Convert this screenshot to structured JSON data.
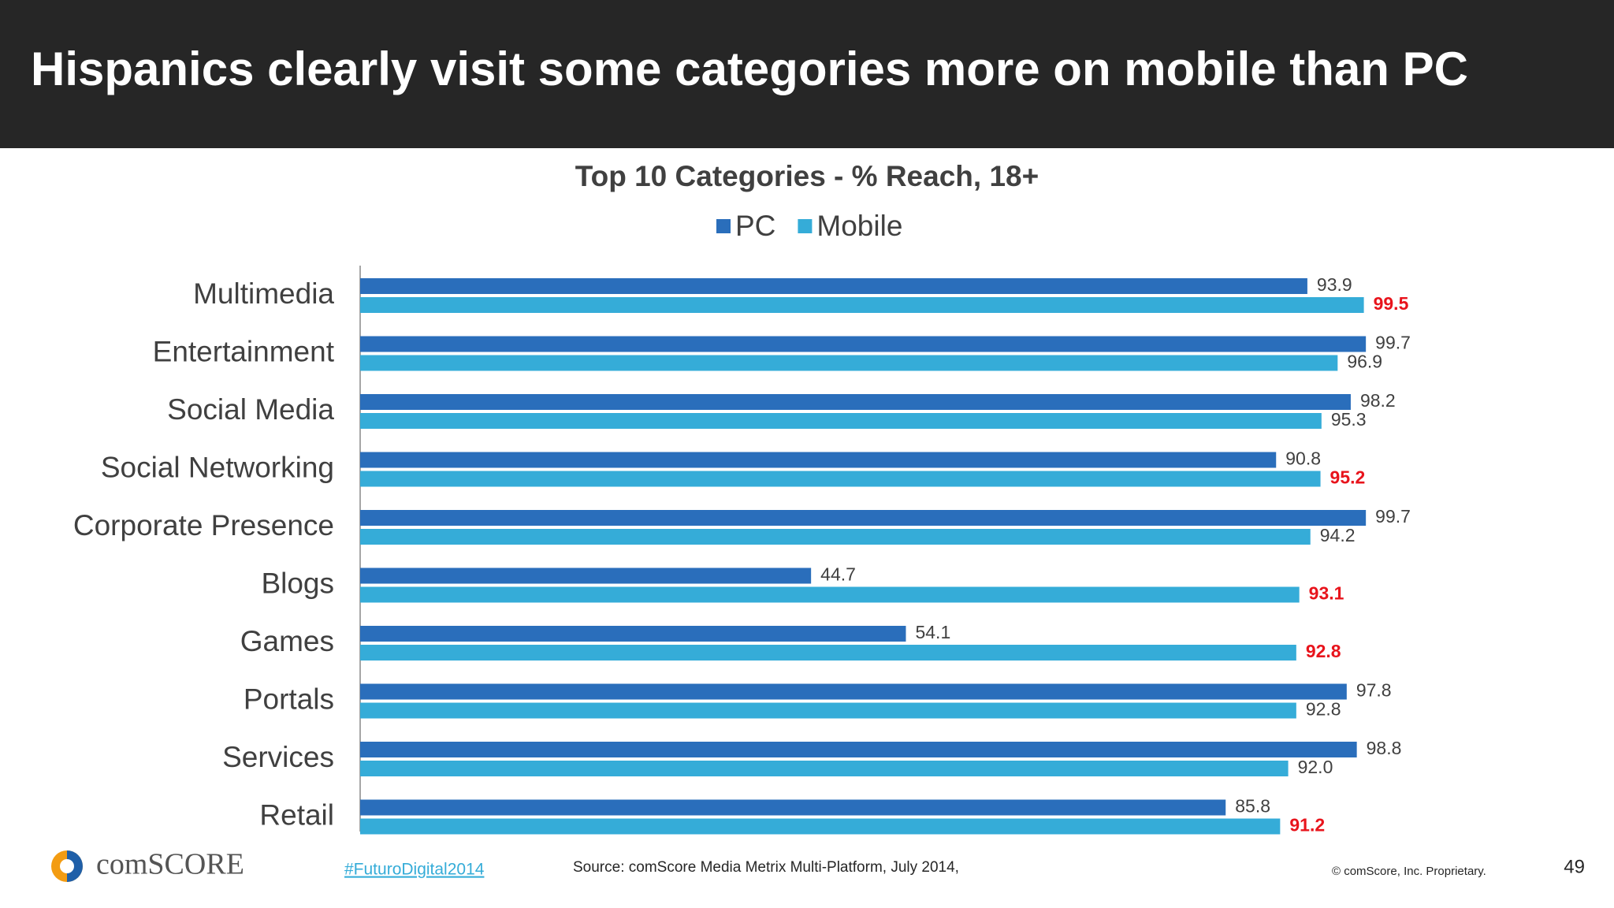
{
  "header": {
    "title": "Hispanics clearly visit some categories more on mobile than PC"
  },
  "chart_data": {
    "type": "hbar",
    "title": "Top 10 Categories - % Reach, 18+",
    "categories": [
      "Multimedia",
      "Entertainment",
      "Social Media",
      "Social Networking",
      "Corporate Presence",
      "Blogs",
      "Games",
      "Portals",
      "Services",
      "Retail"
    ],
    "series": [
      {
        "name": "PC",
        "color": "#2a6ebb",
        "values": [
          93.9,
          99.7,
          98.2,
          90.8,
          99.7,
          44.7,
          54.1,
          97.8,
          98.8,
          85.8
        ],
        "value_labels": [
          "93.9",
          "99.7",
          "98.2",
          "90.8",
          "99.7",
          "44.7",
          "54.1",
          "97.8",
          "98.8",
          "85.8"
        ]
      },
      {
        "name": "Mobile",
        "color": "#35acd8",
        "values": [
          99.5,
          96.9,
          95.3,
          95.2,
          94.2,
          93.1,
          92.8,
          92.8,
          92.0,
          91.2
        ],
        "value_labels": [
          "99.5",
          "96.9",
          "95.3",
          "95.2",
          "94.2",
          "93.1",
          "92.8",
          "92.8",
          "92.0",
          "91.2"
        ]
      }
    ],
    "xlim": [
      0,
      100
    ],
    "highlight_color": "#e8141c",
    "legend": "top"
  },
  "footer": {
    "logo": "comSCORE",
    "hashtag": "#FuturoDigital2014",
    "source": "Source: comScore Media Metrix Multi-Platform, July 2014,",
    "copyright": "© comScore, Inc. Proprietary.",
    "page": "49"
  }
}
